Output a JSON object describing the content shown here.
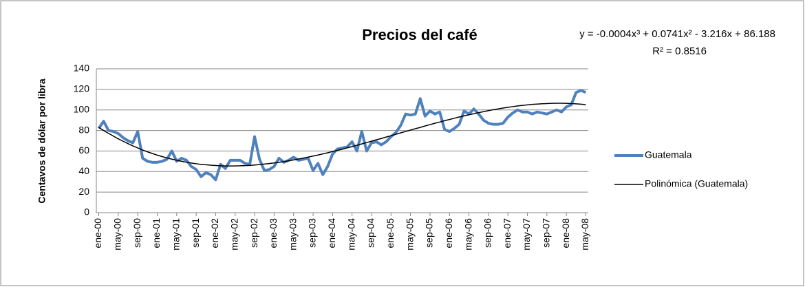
{
  "chart_data": {
    "type": "line",
    "title": "Precios del café",
    "y_label": "Centavos de dólar por libra",
    "annotations": [
      "y = -0.0004x³ + 0.0741x² - 3.216x + 86.188",
      "R² = 0.8516"
    ],
    "categories": [
      "ene-00",
      null,
      null,
      null,
      "may-00",
      null,
      null,
      null,
      "sep-00",
      null,
      null,
      null,
      "ene-01",
      null,
      null,
      null,
      "may-01",
      null,
      null,
      null,
      "sep-01",
      null,
      null,
      null,
      "ene-02",
      null,
      null,
      null,
      "may-02",
      null,
      null,
      null,
      "sep-02",
      null,
      null,
      null,
      "ene-03",
      null,
      null,
      null,
      "may-03",
      null,
      null,
      null,
      "sep-03",
      null,
      null,
      null,
      "ene-04",
      null,
      null,
      null,
      "may-04",
      null,
      null,
      null,
      "sep-04",
      null,
      null,
      null,
      "ene-05",
      null,
      null,
      null,
      "may-05",
      null,
      null,
      null,
      "sep-05",
      null,
      null,
      null,
      "ene-06",
      null,
      null,
      null,
      "may-06",
      null,
      null,
      null,
      "sep-06",
      null,
      null,
      null,
      "ene-07",
      null,
      null,
      null,
      "may-07",
      null,
      null,
      null,
      "sep-07",
      null,
      null,
      null,
      "ene-08",
      null,
      null,
      null,
      "may-08"
    ],
    "series": [
      {
        "name": "Guatemala",
        "color": "#4f81bd",
        "values": [
          82,
          89,
          80,
          79,
          77,
          73,
          70,
          68,
          79,
          53,
          50,
          49,
          49,
          50,
          52,
          60,
          50,
          53,
          51,
          45,
          42,
          35,
          39,
          37,
          32,
          47,
          43,
          51,
          51,
          51,
          48,
          47,
          74,
          52,
          41,
          42,
          45,
          53,
          49,
          51,
          54,
          51,
          52,
          53,
          41,
          48,
          37,
          45,
          57,
          62,
          63,
          64,
          69,
          60,
          79,
          60,
          68,
          69,
          66,
          69,
          74,
          78,
          85,
          96,
          95,
          96,
          111,
          94,
          99,
          96,
          98,
          81,
          79,
          82,
          86,
          99,
          96,
          101,
          96,
          90,
          87,
          86,
          86,
          87,
          93,
          97,
          100,
          98,
          98,
          96,
          98,
          97,
          96,
          98,
          100,
          98,
          103,
          105,
          117,
          119,
          117
        ]
      },
      {
        "name": "Polinómica (Guatemala)",
        "color": "#000000",
        "values": [
          83.0,
          80.0,
          77.2,
          74.5,
          71.9,
          69.5,
          67.2,
          65.0,
          63.0,
          61.0,
          59.2,
          57.6,
          56.0,
          54.6,
          53.3,
          52.1,
          51.0,
          50.0,
          49.1,
          48.3,
          47.6,
          47.0,
          46.6,
          46.2,
          45.9,
          45.6,
          45.5,
          45.5,
          45.5,
          45.6,
          45.8,
          46.0,
          46.4,
          46.8,
          47.3,
          47.8,
          48.4,
          49.0,
          49.7,
          50.5,
          51.3,
          52.2,
          53.1,
          54.1,
          55.1,
          56.1,
          57.2,
          58.3,
          59.5,
          60.6,
          61.8,
          63.1,
          64.3,
          65.6,
          66.9,
          68.2,
          69.6,
          70.9,
          72.2,
          73.6,
          74.9,
          76.3,
          77.7,
          79.0,
          80.4,
          81.7,
          83.0,
          84.4,
          85.7,
          87.0,
          88.2,
          89.5,
          90.7,
          91.9,
          93.1,
          94.2,
          95.3,
          96.3,
          97.4,
          98.3,
          99.3,
          100.2,
          101.0,
          101.8,
          102.6,
          103.2,
          103.9,
          104.4,
          104.9,
          105.4,
          105.7,
          106.0,
          106.2,
          106.4,
          106.5,
          106.5,
          106.4,
          106.2,
          105.9,
          105.6,
          105.1
        ]
      }
    ],
    "ylim": [
      0,
      140
    ],
    "yticks": [
      0,
      20,
      40,
      60,
      80,
      100,
      120,
      140
    ],
    "grid": true,
    "legend": "right"
  }
}
